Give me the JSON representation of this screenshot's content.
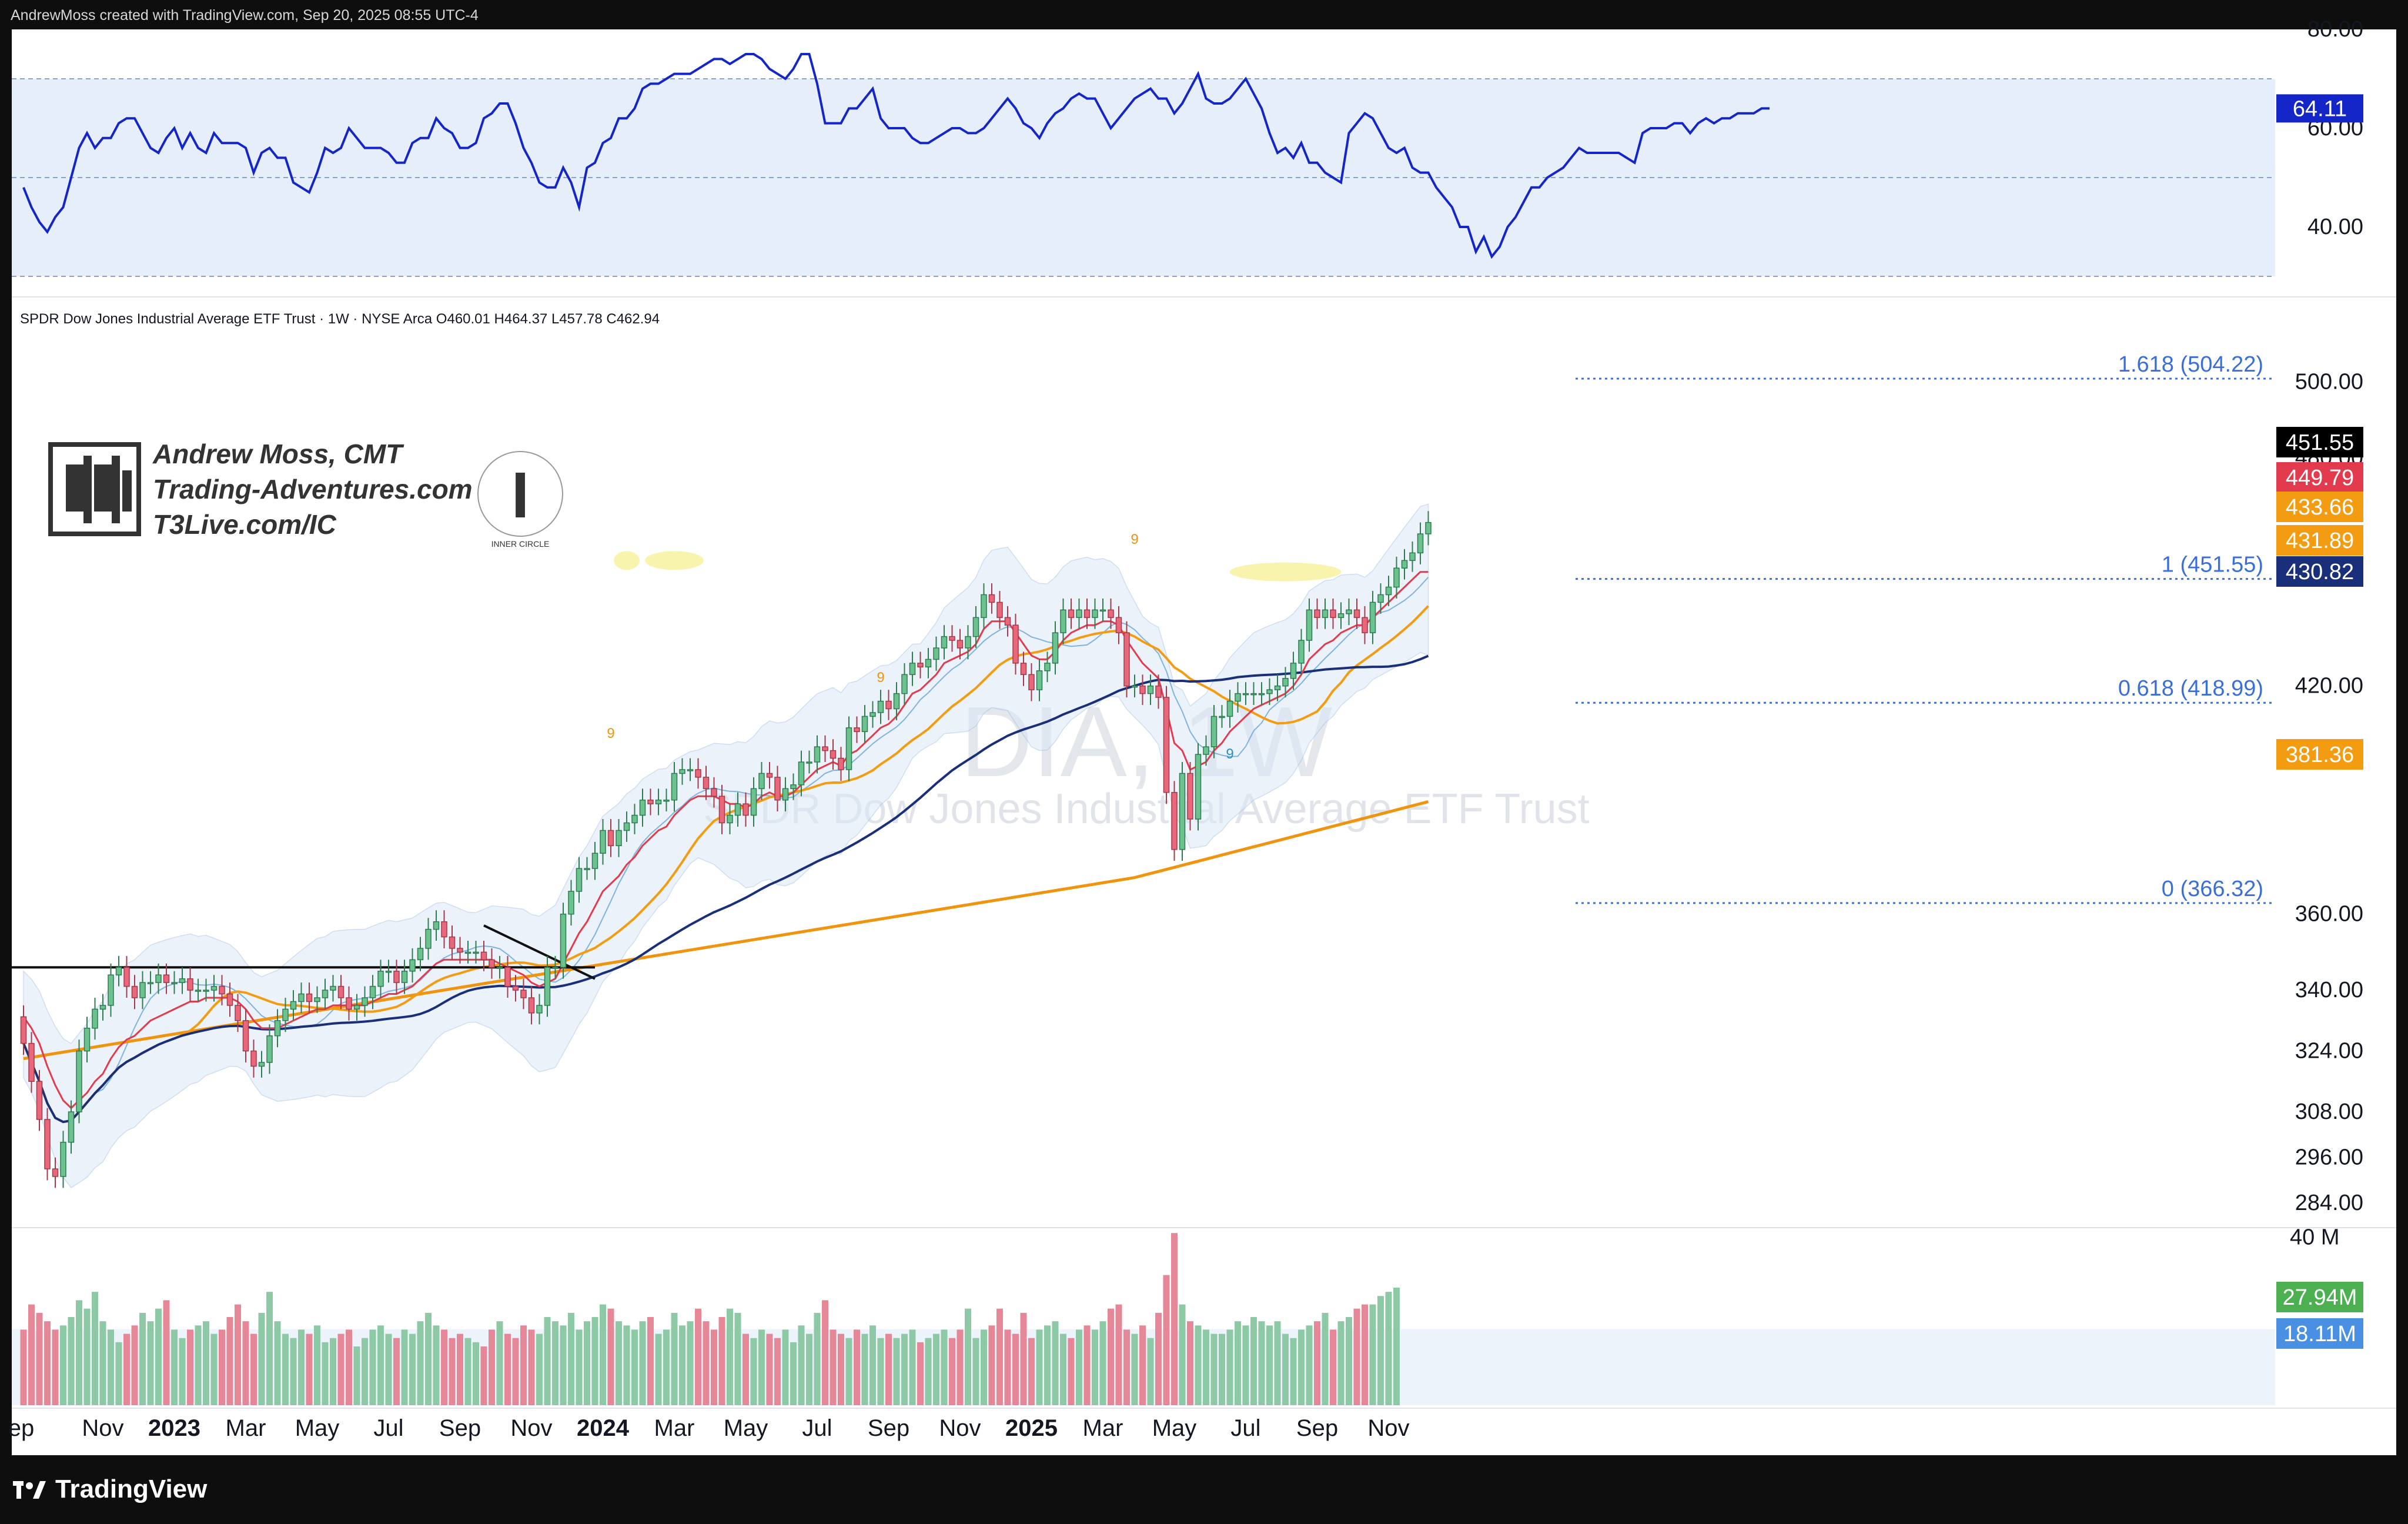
{
  "header": {
    "attribution": "AndrewMoss created with TradingView.com, Sep 20, 2025 08:55 UTC-4"
  },
  "footer": {
    "brand": "TradingView"
  },
  "branding": {
    "name": "Andrew Moss, CMT",
    "site": "Trading-Adventures.com",
    "link": "T3Live.com/IC",
    "seal_text": "INNER CIRCLE"
  },
  "colors": {
    "up": "#6cc28f",
    "down": "#e8677a",
    "ema_red": "#e23b4e",
    "ema_orange": "#f39c12",
    "sma_navy": "#1a2f7a",
    "ma200": "#f0930d",
    "rsi": "#1426c8",
    "fib": "#3a6fd8",
    "bb_fill": "#dbe8f7",
    "vol_up": "#8cc9a4",
    "vol_down": "#e58796"
  },
  "chart_data": [
    {
      "id": "rsi",
      "type": "line",
      "title": "",
      "ylim": [
        30,
        80
      ],
      "y_ticks": [
        "80.00",
        "60.00",
        "40.00"
      ],
      "levels": [
        70,
        50,
        30
      ],
      "last_label": "64.11",
      "values": [
        48,
        44,
        41,
        39,
        42,
        44,
        50,
        56,
        59,
        56,
        58,
        58,
        61,
        62,
        62,
        59,
        56,
        55,
        58,
        60,
        56,
        59,
        56,
        55,
        59,
        57,
        57,
        57,
        56,
        51,
        55,
        56,
        54,
        54,
        49,
        48,
        47,
        51,
        56,
        55,
        56,
        60,
        58,
        56,
        56,
        56,
        55,
        53,
        53,
        57,
        58,
        58,
        62,
        60,
        59,
        56,
        56,
        57,
        62,
        63,
        65,
        65,
        61,
        56,
        53,
        49,
        48,
        48,
        52,
        49,
        44,
        52,
        53,
        57,
        58,
        62,
        62,
        64,
        68,
        69,
        69,
        70,
        71,
        71,
        71,
        72,
        73,
        74,
        74,
        73,
        74,
        75,
        75,
        74,
        72,
        71,
        70,
        72,
        75,
        75,
        69,
        61,
        61,
        61,
        64,
        64,
        66,
        68,
        62,
        60,
        60,
        60,
        58,
        57,
        57,
        58,
        59,
        60,
        60,
        59,
        59,
        60,
        62,
        64,
        66,
        64,
        61,
        60,
        58,
        61,
        63,
        64,
        66,
        67,
        66,
        66,
        63,
        60,
        62,
        64,
        66,
        67,
        68,
        66,
        66,
        63,
        65,
        68,
        71,
        66,
        65,
        65,
        66,
        68,
        70,
        67,
        64,
        59,
        55,
        56,
        54,
        57,
        53,
        53,
        51,
        50,
        49,
        59,
        61,
        63,
        62,
        59,
        56,
        55,
        56,
        52,
        51,
        51,
        48,
        46,
        44,
        40,
        40,
        35,
        38,
        34,
        36,
        40,
        42,
        45,
        48,
        48,
        50,
        51,
        52,
        54,
        56,
        55,
        55,
        55,
        55,
        55,
        54,
        53,
        59,
        60,
        60,
        60,
        61,
        61,
        59,
        61,
        62,
        61,
        62,
        62,
        63,
        63,
        63,
        64,
        64
      ]
    },
    {
      "id": "price",
      "type": "candlestick",
      "title": "SPDR Dow Jones Industrial Average ETF Trust · 1W · NYSE Arca",
      "ohlc_label": {
        "o": "O460.01",
        "h": "H464.37",
        "l": "L457.78",
        "c": "C462.94"
      },
      "watermark": {
        "symbol": "DIA, 1W",
        "name": "SPDR Dow Jones Industrial Average ETF Trust"
      },
      "ylim": [
        278,
        520
      ],
      "y_ticks": [
        {
          "v": 500,
          "t": "500.00"
        },
        {
          "v": 480,
          "t": "480.00"
        },
        {
          "v": 420,
          "t": "420.00"
        },
        {
          "v": 400,
          "t": "400.00"
        },
        {
          "v": 360,
          "t": "360.00"
        },
        {
          "v": 340,
          "t": "340.00"
        },
        {
          "v": 324,
          "t": "324.00"
        },
        {
          "v": 308,
          "t": "308.00"
        },
        {
          "v": 296,
          "t": "296.00"
        },
        {
          "v": 284,
          "t": "284.00"
        }
      ],
      "x_ticks": [
        {
          "i": 0,
          "t": "ep",
          "bold": false
        },
        {
          "i": 10,
          "t": "Nov",
          "bold": false
        },
        {
          "i": 19,
          "t": "2023",
          "bold": true
        },
        {
          "i": 28,
          "t": "Mar",
          "bold": false
        },
        {
          "i": 37,
          "t": "May",
          "bold": false
        },
        {
          "i": 46,
          "t": "Jul",
          "bold": false
        },
        {
          "i": 55,
          "t": "Sep",
          "bold": false
        },
        {
          "i": 64,
          "t": "Nov",
          "bold": false
        },
        {
          "i": 73,
          "t": "2024",
          "bold": true
        },
        {
          "i": 82,
          "t": "Mar",
          "bold": false
        },
        {
          "i": 91,
          "t": "May",
          "bold": false
        },
        {
          "i": 100,
          "t": "Jul",
          "bold": false
        },
        {
          "i": 109,
          "t": "Sep",
          "bold": false
        },
        {
          "i": 118,
          "t": "Nov",
          "bold": false
        },
        {
          "i": 127,
          "t": "2025",
          "bold": true
        },
        {
          "i": 136,
          "t": "Mar",
          "bold": false
        },
        {
          "i": 145,
          "t": "May",
          "bold": false
        },
        {
          "i": 154,
          "t": "Jul",
          "bold": false
        },
        {
          "i": 163,
          "t": "Sep",
          "bold": false
        },
        {
          "i": 172,
          "t": "Nov",
          "bold": false
        }
      ],
      "close": [
        326,
        316,
        306,
        293,
        291,
        300,
        308,
        324,
        330,
        335,
        336,
        344,
        346,
        341,
        338,
        342,
        342,
        344,
        342,
        342,
        343,
        340,
        340,
        340,
        341,
        339,
        336,
        332,
        324,
        320,
        321,
        328,
        332,
        335,
        337,
        339,
        337,
        338,
        340,
        341,
        338,
        335,
        336,
        338,
        341,
        345,
        345,
        342,
        345,
        348,
        351,
        356,
        358,
        354,
        351,
        350,
        350,
        350,
        348,
        346,
        346,
        341,
        340,
        338,
        334,
        336,
        346,
        346,
        360,
        366,
        372,
        372,
        376,
        382,
        378,
        382,
        384,
        386,
        390,
        389,
        390,
        390,
        397,
        398,
        398,
        396,
        393,
        391,
        384,
        386,
        389,
        386,
        393,
        397,
        396,
        390,
        393,
        394,
        400,
        400,
        404,
        403,
        401,
        398,
        409,
        408,
        412,
        413,
        416,
        414,
        418,
        423,
        426,
        425,
        427,
        430,
        433,
        432,
        430,
        433,
        438,
        444,
        442,
        438,
        436,
        426,
        423,
        419,
        424,
        426,
        434,
        440,
        438,
        440,
        438,
        440,
        440,
        438,
        434,
        420,
        420,
        418,
        420,
        417,
        392,
        377,
        397,
        385,
        402,
        404,
        412,
        412,
        416,
        418,
        418,
        418,
        418,
        419,
        420,
        422,
        426,
        432,
        440,
        438,
        440,
        438,
        439,
        440,
        438,
        434,
        442,
        444,
        446,
        451,
        453,
        455,
        460,
        463
      ],
      "open": [
        333,
        326,
        316,
        306,
        293,
        291,
        300,
        308,
        324,
        330,
        335,
        336,
        344,
        346,
        341,
        338,
        342,
        342,
        344,
        342,
        342,
        343,
        340,
        340,
        340,
        341,
        339,
        336,
        332,
        324,
        320,
        321,
        328,
        332,
        335,
        337,
        339,
        337,
        338,
        340,
        341,
        338,
        335,
        336,
        338,
        341,
        345,
        345,
        342,
        345,
        348,
        351,
        356,
        358,
        354,
        351,
        350,
        350,
        350,
        348,
        346,
        346,
        341,
        340,
        338,
        334,
        336,
        346,
        346,
        360,
        366,
        372,
        372,
        376,
        382,
        378,
        382,
        384,
        386,
        390,
        389,
        390,
        390,
        397,
        398,
        398,
        396,
        393,
        391,
        384,
        386,
        389,
        386,
        393,
        397,
        396,
        390,
        393,
        394,
        400,
        400,
        404,
        403,
        401,
        398,
        409,
        408,
        412,
        413,
        416,
        414,
        418,
        423,
        426,
        425,
        427,
        430,
        433,
        432,
        430,
        433,
        438,
        444,
        442,
        438,
        436,
        426,
        423,
        419,
        424,
        426,
        434,
        440,
        438,
        440,
        438,
        440,
        440,
        438,
        434,
        420,
        420,
        418,
        420,
        417,
        392,
        377,
        397,
        385,
        402,
        404,
        412,
        412,
        416,
        418,
        418,
        418,
        418,
        419,
        420,
        422,
        426,
        432,
        440,
        438,
        440,
        438,
        439,
        440,
        438,
        434,
        442,
        444,
        446,
        451,
        453,
        455,
        460
      ],
      "ema_red": [
        333,
        330,
        326,
        320,
        315,
        311,
        309,
        311,
        313,
        316,
        318,
        322,
        325,
        327,
        328,
        330,
        332,
        333,
        334,
        335,
        336,
        337,
        337,
        338,
        338,
        338,
        338,
        337,
        335,
        332,
        330,
        330,
        330,
        331,
        332,
        333,
        334,
        335,
        335,
        336,
        336,
        336,
        336,
        336,
        337,
        338,
        339,
        339,
        340,
        341,
        343,
        345,
        347,
        348,
        348,
        348,
        348,
        348,
        348,
        348,
        347,
        346,
        345,
        344,
        342,
        341,
        342,
        343,
        347,
        351,
        355,
        358,
        362,
        366,
        368,
        370,
        373,
        375,
        378,
        380,
        382,
        383,
        386,
        388,
        390,
        391,
        391,
        391,
        390,
        389,
        389,
        388,
        389,
        391,
        392,
        391,
        391,
        392,
        394,
        396,
        398,
        399,
        400,
        399,
        402,
        403,
        405,
        407,
        409,
        410,
        412,
        415,
        418,
        419,
        421,
        423,
        426,
        427,
        428,
        429,
        431,
        435,
        437,
        437,
        437,
        434,
        431,
        428,
        427,
        427,
        429,
        432,
        434,
        435,
        436,
        436,
        437,
        437,
        436,
        432,
        429,
        426,
        424,
        422,
        414,
        405,
        403,
        398,
        399,
        400,
        403,
        405,
        408,
        410,
        412,
        414,
        415,
        416,
        417,
        418,
        420,
        423,
        427,
        429,
        431,
        432,
        434,
        435,
        436,
        436,
        438,
        440,
        442,
        444,
        446,
        448,
        450,
        450
      ]
    },
    {
      "id": "volume",
      "type": "bar",
      "ylim": [
        0,
        42
      ],
      "y_ticks": [
        "40 M"
      ],
      "last_label": "27.94M",
      "avg_label": "18.11M",
      "values": [
        18,
        24,
        22,
        20,
        18,
        19,
        21,
        25,
        23,
        27,
        20,
        18,
        15,
        17,
        19,
        22,
        20,
        23,
        25,
        18,
        16,
        18,
        19,
        20,
        17,
        18,
        21,
        24,
        20,
        17,
        22,
        27,
        20,
        17,
        16,
        18,
        17,
        19,
        15,
        16,
        17,
        18,
        14,
        16,
        18,
        19,
        17,
        16,
        18,
        17,
        20,
        22,
        19,
        18,
        16,
        17,
        16,
        15,
        14,
        18,
        20,
        17,
        16,
        19,
        18,
        17,
        21,
        20,
        19,
        22,
        18,
        20,
        21,
        24,
        23,
        20,
        19,
        18,
        20,
        21,
        17,
        18,
        22,
        19,
        20,
        23,
        20,
        18,
        21,
        23,
        22,
        17,
        16,
        18,
        17,
        16,
        18,
        15,
        19,
        17,
        22,
        25,
        18,
        17,
        16,
        18,
        17,
        19,
        16,
        17,
        16,
        17,
        18,
        15,
        16,
        17,
        18,
        16,
        18,
        23,
        16,
        18,
        19,
        23,
        18,
        17,
        22,
        16,
        18,
        19,
        20,
        17,
        16,
        18,
        19,
        18,
        20,
        23,
        24,
        18,
        17,
        19,
        16,
        22,
        31,
        41,
        24,
        20,
        19,
        18,
        17,
        17,
        18,
        20,
        19,
        21,
        20,
        19,
        20,
        17,
        16,
        18,
        19,
        20,
        22,
        18,
        20,
        21,
        23,
        24,
        24,
        26,
        27,
        28
      ]
    }
  ],
  "fib_levels": [
    {
      "label": "1.618 (504.22)",
      "value": 504.22
    },
    {
      "label": "1 (451.55)",
      "value": 451.55
    },
    {
      "label": "0.618 (418.99)",
      "value": 418.99
    },
    {
      "label": "0 (366.32)",
      "value": 366.32
    }
  ],
  "price_labels": [
    {
      "label": "451.55",
      "bg": "#000000",
      "fg": "#ffffff"
    },
    {
      "label": "449.79",
      "bg": "#e23b4e",
      "fg": "#ffffff"
    },
    {
      "label": "433.66",
      "bg": "#f39c12",
      "fg": "#ffffff"
    },
    {
      "label": "431.89",
      "bg": "#f39c12",
      "fg": "#ffffff"
    },
    {
      "label": "430.82",
      "bg": "#1a2f7a",
      "fg": "#ffffff"
    },
    {
      "label": "381.36",
      "bg": "#f39c12",
      "fg": "#ffffff"
    }
  ],
  "td_marks": [
    "9",
    "9",
    "9",
    "9"
  ]
}
